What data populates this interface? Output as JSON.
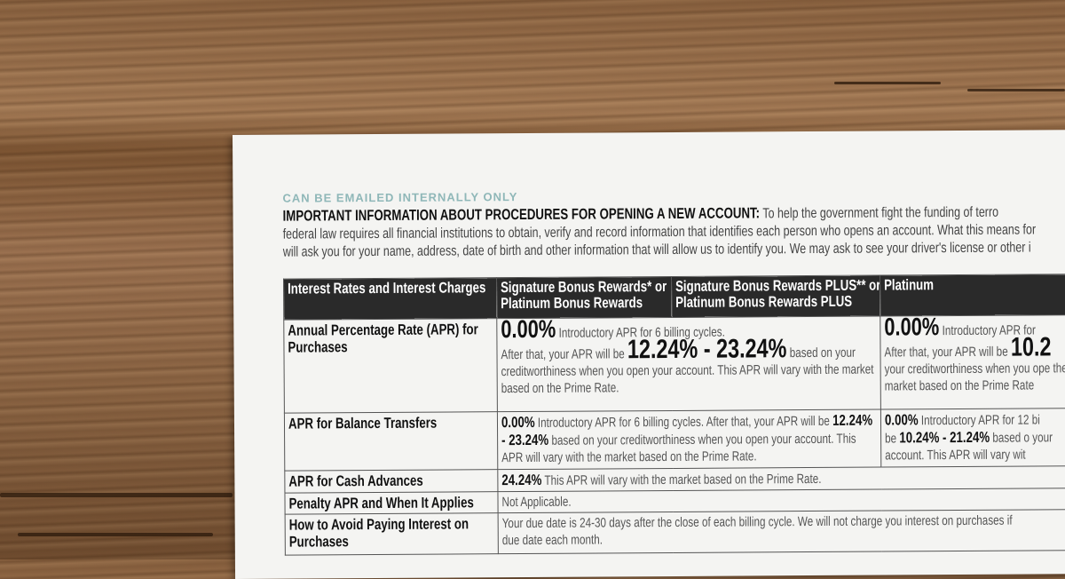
{
  "document": {
    "note": "CAN BE EMAILED INTERNALLY ONLY",
    "intro_heading": "IMPORTANT INFORMATION ABOUT PROCEDURES FOR OPENING A NEW ACCOUNT:",
    "intro_line1": "To help the government fight the funding of terro",
    "intro_line2": "federal law requires all financial institutions to obtain, verify and record information that identifies each person who opens an account. What this means for",
    "intro_line3": "will ask you for your name, address, date of birth and other information that will allow us to identify you. We may ask to see your driver's license or other i"
  },
  "table": {
    "headers": [
      "Interest Rates and Interest Charges",
      "Signature Bonus Rewards* or Platinum Bonus Rewards",
      "Signature Bonus Rewards PLUS** or Platinum Bonus Rewards PLUS",
      "Platinum"
    ],
    "purchases": {
      "label": "Annual Percentage Rate (APR) for Purchases",
      "a_rate": "0.00%",
      "a_intro": "Introductory APR for 6 billing cycles.",
      "a_after": "After that, your APR will be",
      "a_range": "12.24% - 23.24%",
      "a_based": "based",
      "a_rest": "on your creditworthiness when you open your account. This APR will vary with the market based on the Prime Rate.",
      "b_rate": "0.00%",
      "b_intro": "Introductory APR for",
      "b_after": "After that, your APR will be",
      "b_range": "10.2",
      "b_rest": "your creditworthiness when you ope the market based on the Prime Rate"
    },
    "balance": {
      "label": "APR for Balance Transfers",
      "a_rate": "0.00%",
      "a_text1": "Introductory APR for 6 billing cycles. After that, your APR will be",
      "a_range": "12.24% - 23.24%",
      "a_text2": "based on your creditworthiness when you open your account. This APR will vary with the market based on the Prime Rate.",
      "b_rate": "0.00%",
      "b_text1": "Introductory APR for 12 bi",
      "b_be": "be",
      "b_range": "10.24% - 21.24%",
      "b_text2": "based o your account. This APR will vary wit"
    },
    "cash": {
      "label": "APR for Cash Advances",
      "rate": "24.24%",
      "text": "This APR will vary with the market based on the Prime Rate."
    },
    "penalty": {
      "label": "Penalty APR and When It Applies",
      "text": "Not Applicable."
    },
    "avoid": {
      "label": "How to Avoid Paying Interest on Purchases",
      "text": "Your due date is 24-30 days after the close of each billing cycle. We will not charge you interest on purchases if",
      "text2": "due date each month."
    }
  }
}
